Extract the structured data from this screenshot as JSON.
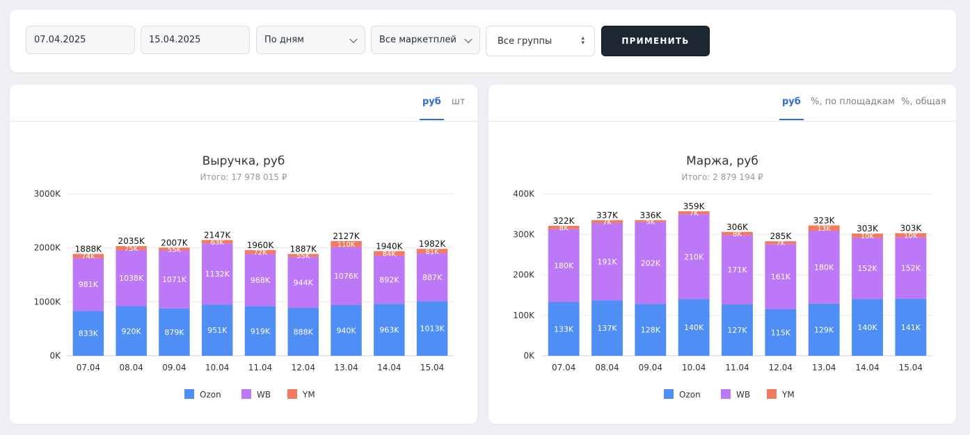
{
  "filters": {
    "date_from": "07.04.2025",
    "date_to": "15.04.2025",
    "period": "По дням",
    "marketplace": "Все маркетплей",
    "group": "Все группы",
    "apply_label": "ПРИМЕНИТЬ"
  },
  "revenue_panel": {
    "tabs": [
      {
        "label": "руб",
        "active": true
      },
      {
        "label": "шт",
        "active": false
      }
    ]
  },
  "margin_panel": {
    "tabs": [
      {
        "label": "руб",
        "active": true
      },
      {
        "label": "%, по площадкам",
        "active": false
      },
      {
        "label": "%, общая",
        "active": false
      }
    ]
  },
  "colors": {
    "Ozon": "#4f8ef5",
    "WB": "#bd78f7",
    "YM": "#f27b5e"
  },
  "chart_data": [
    {
      "type": "bar",
      "stacked": true,
      "title": "Выручка, руб",
      "subtitle": "Итого: 17 978 015 ₽",
      "categories": [
        "07.04",
        "08.04",
        "09.04",
        "10.04",
        "11.04",
        "12.04",
        "13.04",
        "14.04",
        "15.04"
      ],
      "series": [
        {
          "name": "Ozon",
          "values": [
            833,
            920,
            879,
            951,
            919,
            888,
            940,
            963,
            1013
          ]
        },
        {
          "name": "WB",
          "values": [
            981,
            1038,
            1071,
            1132,
            968,
            944,
            1076,
            892,
            887
          ]
        },
        {
          "name": "YM",
          "values": [
            74,
            75,
            55,
            63,
            72,
            55,
            110,
            84,
            81
          ]
        }
      ],
      "totals": [
        1888,
        2035,
        2007,
        2147,
        1960,
        1887,
        2127,
        1940,
        1982
      ],
      "unit_suffix": "K",
      "ylim": [
        0,
        3000
      ],
      "yticks": [
        0,
        1000,
        2000,
        3000
      ],
      "legend": "bottom",
      "grid": true
    },
    {
      "type": "bar",
      "stacked": true,
      "title": "Маржа, руб",
      "subtitle": "Итого: 2 879 194 ₽",
      "categories": [
        "07.04",
        "08.04",
        "09.04",
        "10.04",
        "11.04",
        "12.04",
        "13.04",
        "14.04",
        "15.04"
      ],
      "series": [
        {
          "name": "Ozon",
          "values": [
            133,
            137,
            128,
            140,
            127,
            115,
            129,
            140,
            141
          ]
        },
        {
          "name": "WB",
          "values": [
            180,
            191,
            202,
            210,
            171,
            161,
            180,
            152,
            152
          ]
        },
        {
          "name": "YM",
          "values": [
            8,
            7,
            5,
            7,
            8,
            7,
            13,
            10,
            10
          ]
        }
      ],
      "totals": [
        322,
        337,
        336,
        359,
        306,
        285,
        323,
        303,
        303
      ],
      "unit_suffix": "K",
      "ylim": [
        0,
        400
      ],
      "yticks": [
        0,
        100,
        200,
        300,
        400
      ],
      "legend": "bottom",
      "grid": true
    }
  ]
}
